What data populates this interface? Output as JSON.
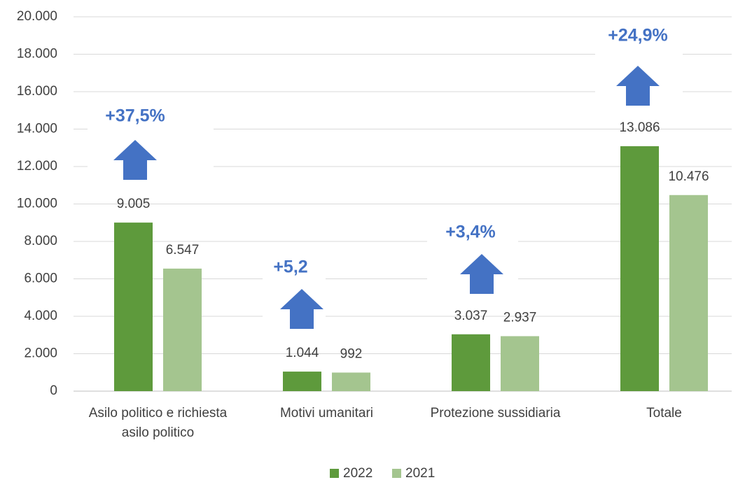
{
  "chart_data": {
    "type": "bar",
    "categories": [
      "Asilo politico e richiesta asilo politico",
      "Motivi umanitari",
      "Protezione sussidiaria",
      "Totale"
    ],
    "series": [
      {
        "name": "2022",
        "color": "#5e9a3c",
        "values": [
          9005,
          1044,
          3037,
          13086
        ],
        "value_labels": [
          "9.005",
          "1.044",
          "3.037",
          "13.086"
        ]
      },
      {
        "name": "2021",
        "color": "#a4c58f",
        "values": [
          6547,
          992,
          2937,
          10476
        ],
        "value_labels": [
          "6.547",
          "992",
          "2.937",
          "10.476"
        ]
      }
    ],
    "annotations": [
      "+37,5%",
      "+5,2",
      "+3,4%",
      "+24,9%"
    ],
    "annotation_color": "#4472c4",
    "ylim": [
      0,
      20000
    ],
    "yticks": [
      0,
      {
        "value": 2000,
        "label": "2.000"
      },
      {
        "value": 4000,
        "label": "4.000"
      },
      {
        "value": 6000,
        "label": "6.000"
      },
      {
        "value": 8000,
        "label": "8.000"
      },
      {
        "value": 10000,
        "label": "10.000"
      },
      {
        "value": 12000,
        "label": "12.000"
      },
      {
        "value": 14000,
        "label": "14.000"
      },
      {
        "value": 16000,
        "label": "16.000"
      },
      {
        "value": 18000,
        "label": "18.000"
      },
      {
        "value": 20000,
        "label": "20.000"
      }
    ],
    "grid": true,
    "legend": "bottom"
  }
}
